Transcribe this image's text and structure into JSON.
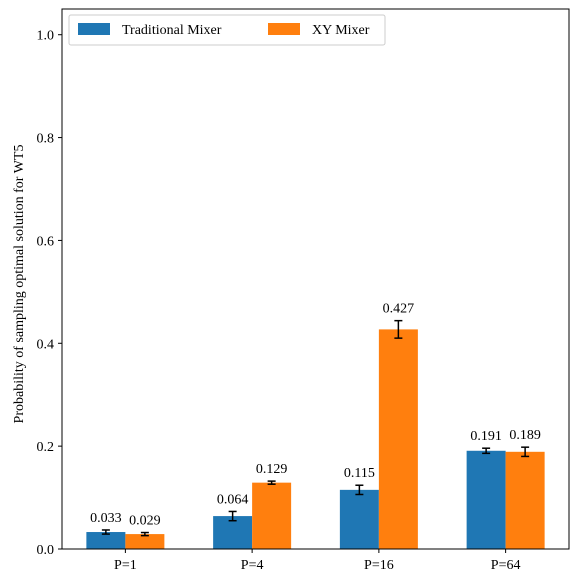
{
  "chart_data": {
    "type": "bar",
    "title": "",
    "xlabel": "",
    "ylabel": "Probability of sampling optimal solution for WT5",
    "categories": [
      "P=1",
      "P=4",
      "P=16",
      "P=64"
    ],
    "ylim": [
      0,
      1.05
    ],
    "yticks": [
      "0.0",
      "0.2",
      "0.4",
      "0.6",
      "0.8",
      "1.0"
    ],
    "legend_position": "top-left",
    "grid": false,
    "series": [
      {
        "name": "Traditional Mixer",
        "color": "#1f77b4",
        "values": [
          0.033,
          0.064,
          0.115,
          0.191
        ],
        "errors": [
          0.004,
          0.009,
          0.009,
          0.005
        ],
        "labels": [
          "0.033",
          "0.064",
          "0.115",
          "0.191"
        ]
      },
      {
        "name": "XY Mixer",
        "color": "#ff7f0e",
        "values": [
          0.029,
          0.129,
          0.427,
          0.189
        ],
        "errors": [
          0.003,
          0.003,
          0.017,
          0.009
        ],
        "labels": [
          "0.029",
          "0.129",
          "0.427",
          "0.189"
        ]
      }
    ]
  }
}
